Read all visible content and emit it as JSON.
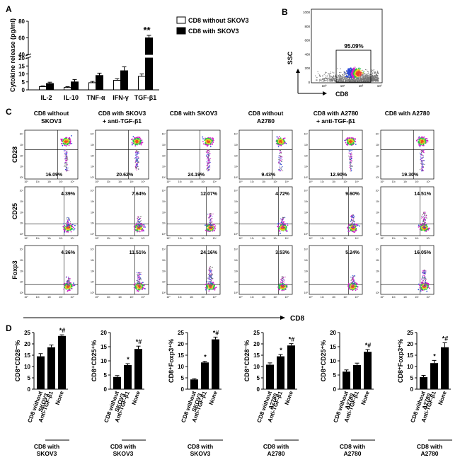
{
  "panel_labels": {
    "a": "A",
    "b": "B",
    "c": "C",
    "d": "D"
  },
  "colors": {
    "black": "#000000",
    "white": "#ffffff",
    "dot_gray": "#777777",
    "dot_magenta": "#d11ec8",
    "dot_green": "#26c24a",
    "dot_blue": "#2b49d8"
  },
  "chart_data": [
    {
      "type": "bar",
      "title": "",
      "ylabel": "Cytokine release (pg/ml)",
      "xlabel": "",
      "categories": [
        "IL-2",
        "IL-10",
        "TNF-α",
        "IFN-γ",
        "TGF-β1"
      ],
      "series": [
        {
          "name": "CD8 without SKOV3",
          "values": [
            2,
            1.5,
            4.5,
            6,
            8.5
          ],
          "errors": [
            0.5,
            0.5,
            0.8,
            1,
            1.5
          ],
          "color": "#ffffff"
        },
        {
          "name": "CD8 with SKOV3",
          "values": [
            4,
            5,
            9,
            12,
            60
          ],
          "errors": [
            0.8,
            1.5,
            1.5,
            2.5,
            3
          ],
          "color": "#000000"
        }
      ],
      "y_ticks_lower": [
        "0",
        "5",
        "10",
        "15",
        "20"
      ],
      "y_ticks_upper": [
        "40",
        "60",
        "80"
      ],
      "axis_break": [
        20,
        40
      ],
      "significance": [
        {
          "category": "TGF-β1",
          "label": "**"
        }
      ]
    },
    {
      "type": "bar",
      "ylabel": "CD8⁺CD28⁻%",
      "ylim": [
        0,
        25
      ],
      "yticks": [
        "0",
        "5",
        "10",
        "15",
        "20",
        "25"
      ],
      "categories": [
        "CD8 without SKOV3",
        "Anti-TGF-β1",
        "None"
      ],
      "values": [
        14.5,
        18.5,
        23.5
      ],
      "errors": [
        1.2,
        1,
        0.5
      ],
      "marks": [
        "",
        "",
        "*#"
      ],
      "group_label": "CD8 with SKOV3"
    },
    {
      "type": "bar",
      "ylabel": "CD8⁺CD25⁺%",
      "ylim": [
        0,
        20
      ],
      "yticks": [
        "0",
        "5",
        "10",
        "15",
        "20"
      ],
      "categories": [
        "CD8 without SKOV3",
        "Anti-TGF-β1",
        "None"
      ],
      "values": [
        4.3,
        8.5,
        14.2
      ],
      "errors": [
        0.5,
        0.5,
        1
      ],
      "marks": [
        "",
        "*",
        "*#"
      ],
      "group_label": "CD8 with SKOV3"
    },
    {
      "type": "bar",
      "ylabel": "CD8⁺Foxp3⁺%",
      "ylim": [
        0,
        25
      ],
      "yticks": [
        "0",
        "5",
        "10",
        "15",
        "20",
        "25"
      ],
      "categories": [
        "CD8 without SKOV3",
        "Anti-TGF-β1",
        "None"
      ],
      "values": [
        4.3,
        11.8,
        22
      ],
      "errors": [
        0.3,
        0.5,
        1
      ],
      "marks": [
        "",
        "*",
        "*#"
      ],
      "group_label": "CD8 with SKOV3"
    },
    {
      "type": "bar",
      "ylabel": "CD8⁺CD28⁻%",
      "ylim": [
        0,
        25
      ],
      "yticks": [
        "0",
        "5",
        "10",
        "15",
        "20",
        "25"
      ],
      "categories": [
        "CD8 without A2780",
        "Anti-TGF-β1",
        "None"
      ],
      "values": [
        10.8,
        14.5,
        19.3
      ],
      "errors": [
        0.8,
        0.8,
        0.8
      ],
      "marks": [
        "",
        "*",
        "*#"
      ],
      "group_label": "CD8 with A2780"
    },
    {
      "type": "bar",
      "ylabel": "CD8⁺CD25⁺%",
      "ylim": [
        0,
        20
      ],
      "yticks": [
        "0",
        "5",
        "10",
        "15",
        "20"
      ],
      "categories": [
        "CD8 without A2780",
        "Anti-TGF-β1",
        "None"
      ],
      "values": [
        6.2,
        8.5,
        13.2
      ],
      "errors": [
        0.6,
        0.7,
        0.8
      ],
      "marks": [
        "",
        "",
        "*#"
      ],
      "group_label": "CD8 with A2780"
    },
    {
      "type": "bar",
      "ylabel": "CD8⁺Foxp3⁺%",
      "ylim": [
        0,
        25
      ],
      "yticks": [
        "0",
        "5",
        "10",
        "15",
        "20",
        "25"
      ],
      "categories": [
        "CD8 without A2780",
        "Anti-TGF-β1",
        "None"
      ],
      "values": [
        5.3,
        11.5,
        18.5
      ],
      "errors": [
        0.8,
        1.2,
        2
      ],
      "marks": [
        "",
        "*",
        "*#"
      ],
      "group_label": "CD8 with A2780"
    }
  ],
  "panel_b": {
    "y_axis": "SSC",
    "x_axis": "CD8",
    "gate_pct": "95.09%",
    "y_ticks": [
      "1000",
      "800",
      "600",
      "400",
      "200",
      "0"
    ],
    "x_ticks": [
      "10⁰",
      "10¹",
      "10²",
      "10³"
    ]
  },
  "panel_c": {
    "columns": [
      {
        "line1": "CD8 without",
        "line2": "SKOV3"
      },
      {
        "line1": "CD8 with SKOV3",
        "line2": "+ anti-TGF-β1"
      },
      {
        "line1": "CD8 with SKOV3",
        "line2": ""
      },
      {
        "line1": "CD8 without",
        "line2": "A2780"
      },
      {
        "line1": "CD8 with A2780",
        "line2": "+ anti-TGF-β1"
      },
      {
        "line1": "CD8 with A2780",
        "line2": ""
      }
    ],
    "rows": [
      "CD28",
      "CD25",
      "Foxp3"
    ],
    "percentages": [
      [
        "16.09%",
        "20.62%",
        "24.19%",
        "9.43%",
        "12.90%",
        "19.30%"
      ],
      [
        "4.39%",
        "7.64%",
        "12.07%",
        "4.72%",
        "9.60%",
        "14.51%"
      ],
      [
        "4.36%",
        "11.51%",
        "24.16%",
        "3.53%",
        "5.24%",
        "16.05%"
      ]
    ],
    "tick_labels": [
      "10⁰",
      "10¹",
      "10²",
      "10³",
      "10⁴"
    ],
    "x_axis_label": "CD8"
  }
}
